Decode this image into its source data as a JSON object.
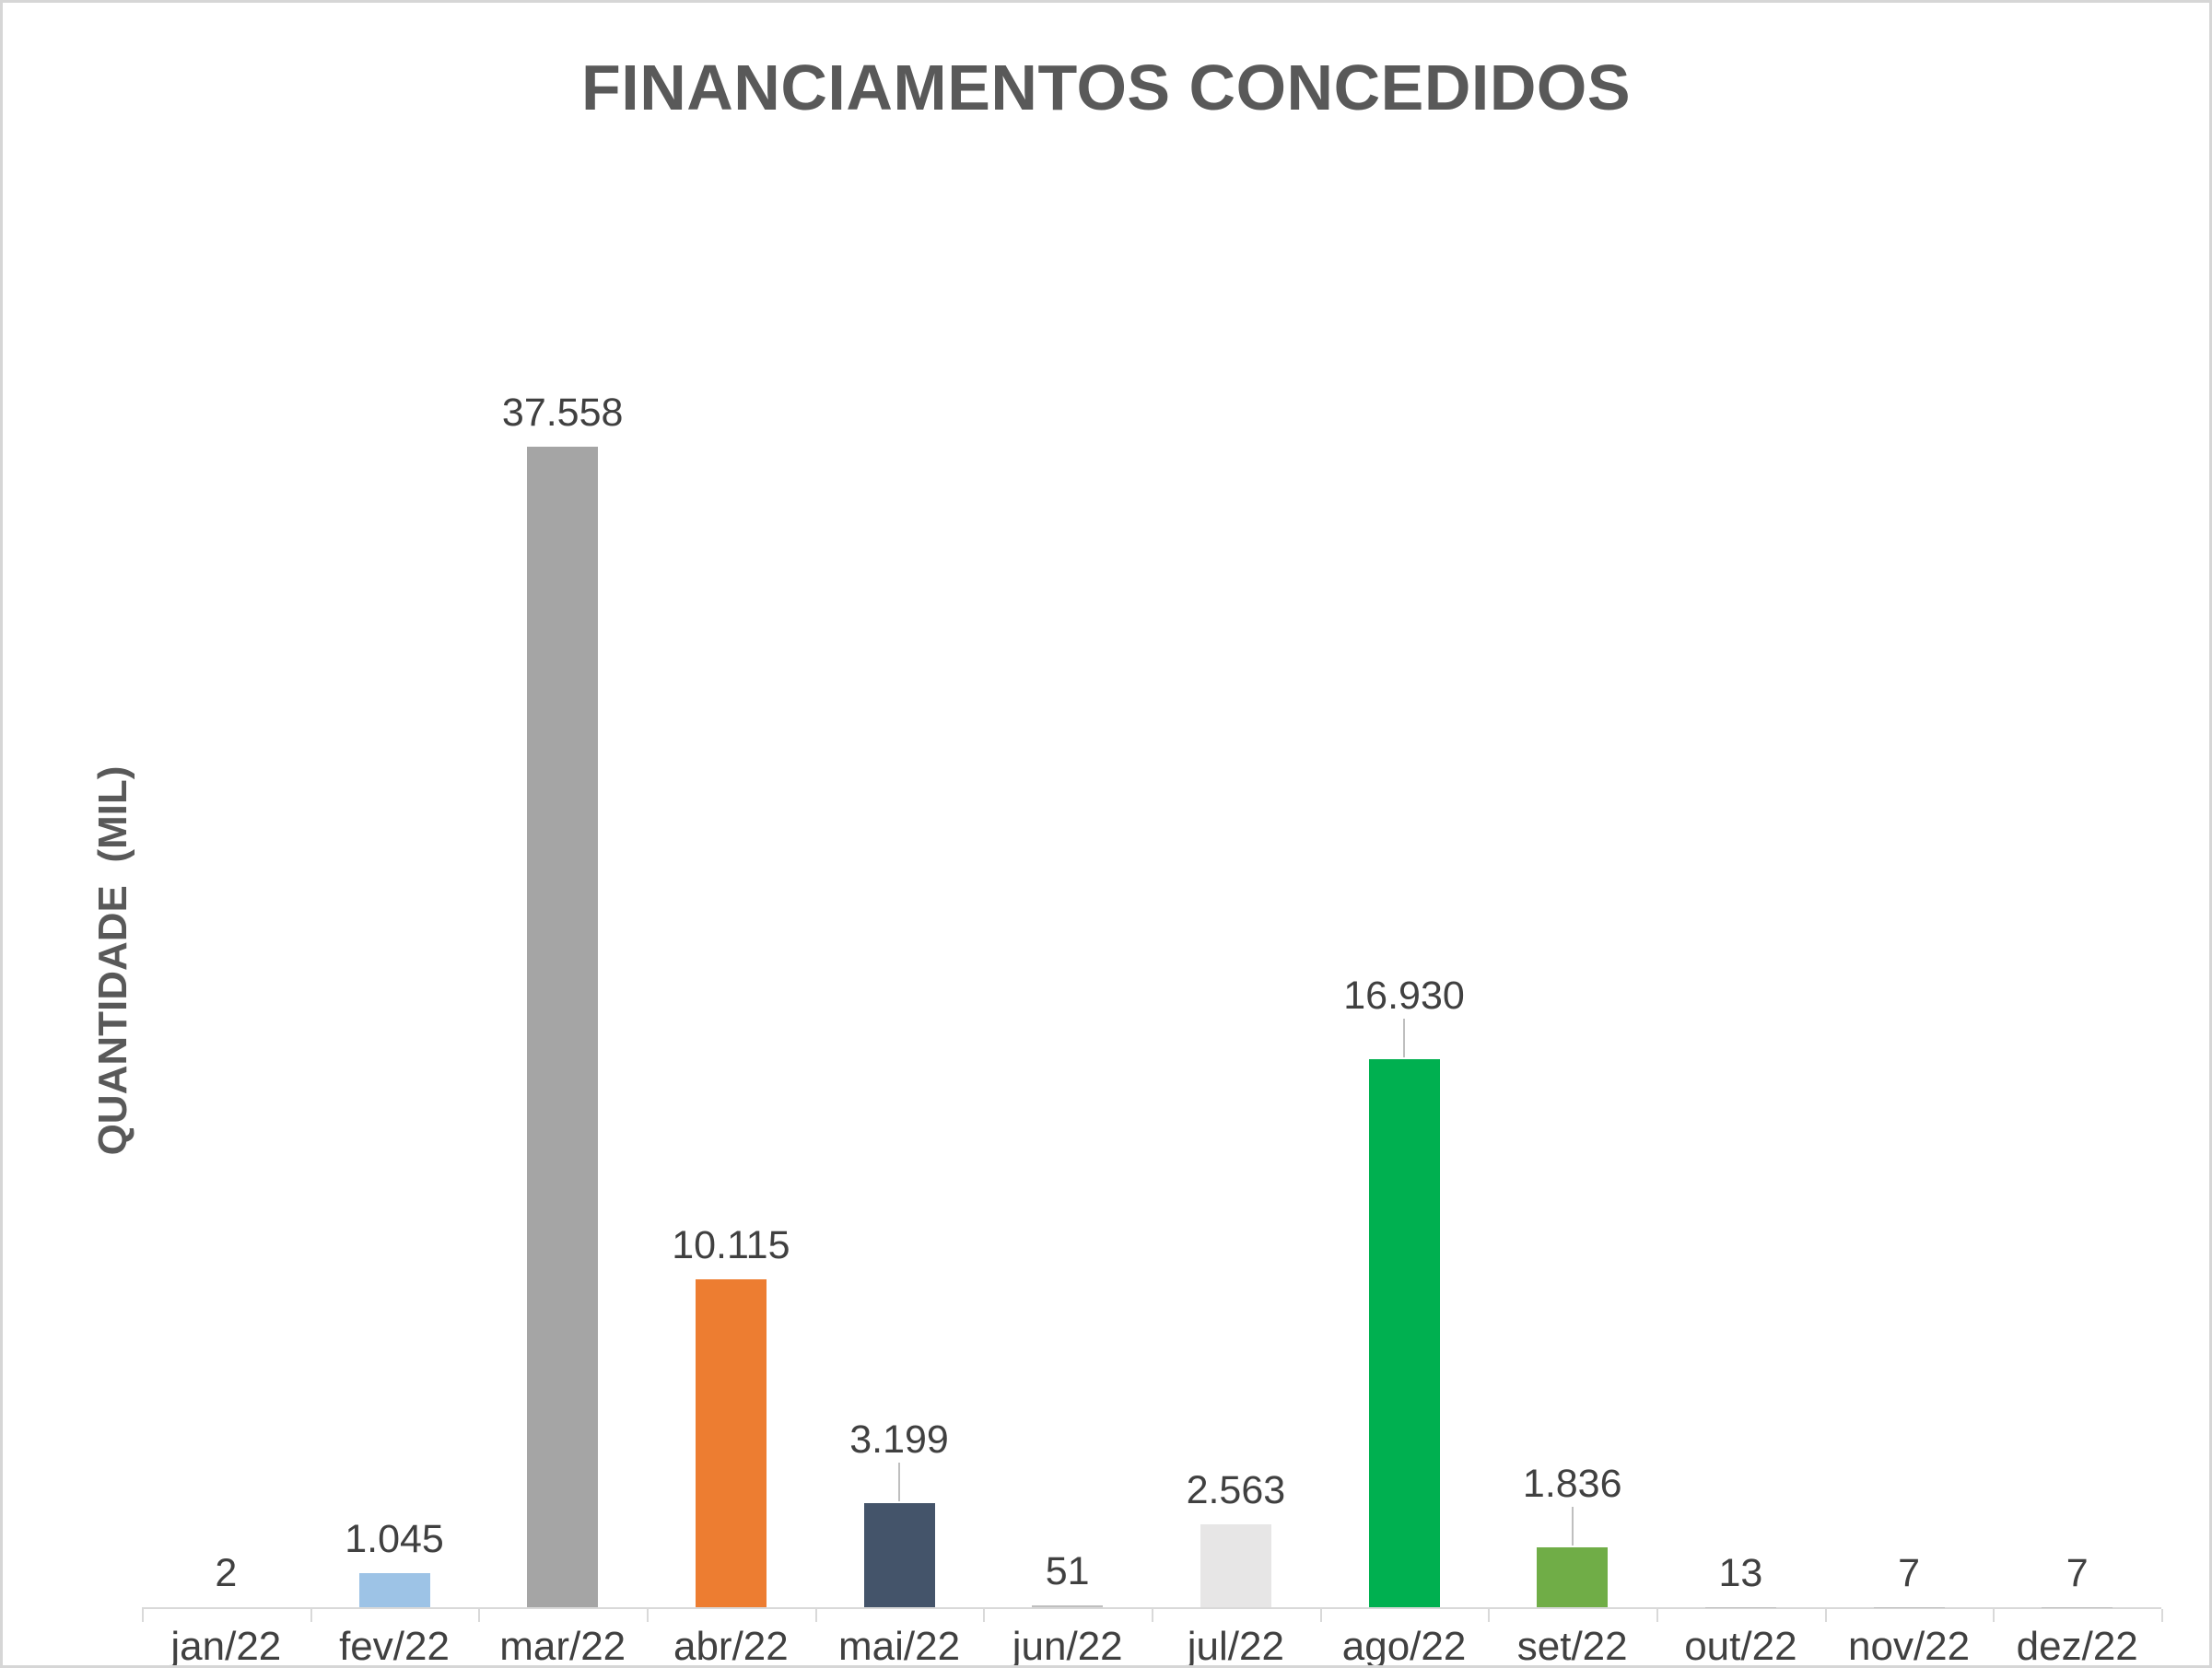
{
  "window": {
    "background": "#FFFFFF",
    "border_color": "#D6D6D6"
  },
  "chart_data": {
    "type": "bar",
    "title": "FINANCIAMENTOS CONCEDIDOS",
    "xlabel": "",
    "ylabel": "QUANTIDADE  (MIL)",
    "categories": [
      "jan/22",
      "fev/22",
      "mar/22",
      "abr/22",
      "mai/22",
      "jun/22",
      "jul/22",
      "ago/22",
      "set/22",
      "out/22",
      "nov/22",
      "dez/22"
    ],
    "values": [
      2,
      1045,
      37558,
      10115,
      3199,
      51,
      2563,
      16930,
      1836,
      13,
      7,
      7
    ],
    "value_labels": [
      "2",
      "1.045",
      "37.558",
      "10.115",
      "3.199",
      "51",
      "2.563",
      "16.930",
      "1.836",
      "13",
      "7",
      "7"
    ],
    "bar_colors": [
      "#BFBFBF",
      "#9DC3E6",
      "#A5A5A5",
      "#ED7D31",
      "#44546A",
      "#BFBFBF",
      "#E7E6E6",
      "#00B050",
      "#70AD47",
      "#BFBFBF",
      "#BFBFBF",
      "#BFBFBF"
    ],
    "leader_line_indices": [
      4,
      7,
      8
    ],
    "ylim": [
      0,
      37558
    ],
    "grid": false,
    "legend": false,
    "colors": {
      "title_text": "#595959",
      "axis_text": "#404040",
      "data_label_text": "#404040",
      "axis_line": "#D9D9D9",
      "leader_line": "#BFBFBF"
    }
  }
}
